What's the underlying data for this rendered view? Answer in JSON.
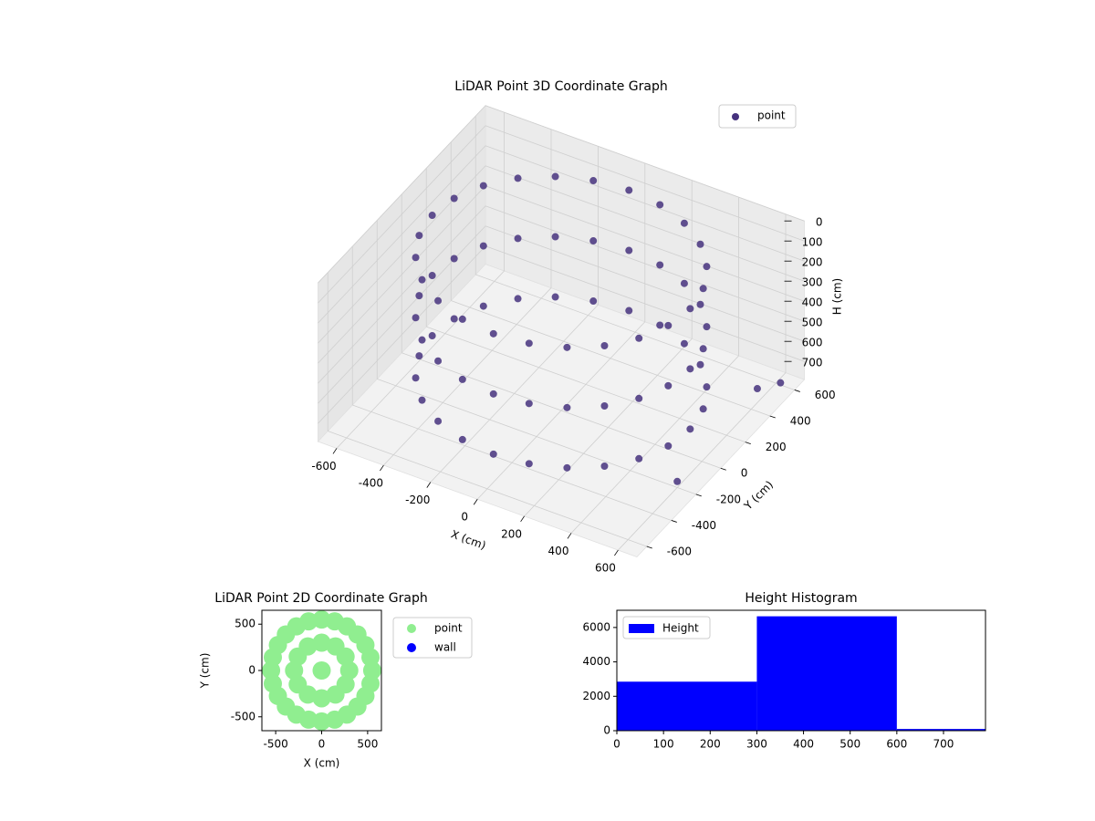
{
  "chart_data": [
    {
      "type": "scatter3d",
      "title": "LiDAR Point 3D Coordinate Graph",
      "xlabel": "X (cm)",
      "ylabel": "Y (cm)",
      "zlabel": "H (cm)",
      "xlim": [
        -680,
        680
      ],
      "ylim": [
        -680,
        680
      ],
      "zlim": [
        0,
        790
      ],
      "z_inverted": true,
      "xticks": [
        -600,
        -400,
        -200,
        0,
        200,
        400,
        600
      ],
      "yticks": [
        -600,
        -400,
        -200,
        0,
        200,
        400,
        600
      ],
      "zticks": [
        0,
        100,
        200,
        300,
        400,
        500,
        600,
        700
      ],
      "legend": "upper right",
      "grid": true,
      "series": [
        {
          "name": "point",
          "color": "#46327e",
          "x": [
            550,
            531,
            476,
            389,
            275,
            142,
            0,
            -142,
            -275,
            -389,
            -476,
            -531,
            -550,
            -531,
            -476,
            -389,
            -275,
            -142,
            0,
            142,
            275,
            389,
            476,
            531,
            550,
            531,
            476,
            389,
            275,
            142,
            0,
            -142,
            -275,
            -389,
            -476,
            -531,
            -550,
            -531,
            -476,
            -389,
            -275,
            -142,
            0,
            142,
            275,
            389,
            476,
            531,
            550,
            531,
            476,
            389,
            275,
            142,
            0,
            -142,
            -275,
            -389,
            -476,
            -531,
            -550,
            -531,
            -476,
            -389,
            -275,
            -142,
            0,
            142,
            275,
            389,
            476,
            531,
            600,
            620,
            600
          ],
          "y": [
            0,
            142,
            275,
            389,
            476,
            531,
            550,
            531,
            476,
            389,
            275,
            142,
            0,
            -142,
            -275,
            -389,
            -476,
            -531,
            -550,
            -531,
            -476,
            -389,
            -275,
            -142,
            0,
            142,
            275,
            389,
            476,
            531,
            550,
            531,
            476,
            389,
            275,
            142,
            0,
            -142,
            -275,
            -389,
            -476,
            -531,
            -550,
            -531,
            -476,
            -389,
            -275,
            -142,
            0,
            142,
            275,
            389,
            476,
            531,
            550,
            531,
            476,
            389,
            275,
            142,
            0,
            -142,
            -275,
            -389,
            -476,
            -531,
            -550,
            -531,
            -476,
            -389,
            -275,
            -142,
            450,
            600,
            -200
          ],
          "z": [
            50,
            50,
            50,
            50,
            50,
            50,
            50,
            50,
            50,
            50,
            50,
            50,
            50,
            50,
            50,
            50,
            50,
            50,
            50,
            50,
            50,
            50,
            50,
            50,
            350,
            350,
            350,
            350,
            350,
            350,
            350,
            350,
            350,
            350,
            350,
            350,
            350,
            350,
            350,
            350,
            350,
            350,
            350,
            350,
            350,
            350,
            350,
            350,
            650,
            650,
            650,
            650,
            650,
            650,
            650,
            650,
            650,
            650,
            650,
            650,
            650,
            650,
            650,
            650,
            650,
            650,
            650,
            650,
            650,
            650,
            650,
            650,
            720,
            780,
            760
          ]
        }
      ]
    },
    {
      "type": "scatter",
      "title": "LiDAR Point 2D Coordinate Graph",
      "xlabel": "X (cm)",
      "ylabel": "Y (cm)",
      "xlim": [
        -650,
        650
      ],
      "ylim": [
        -650,
        650
      ],
      "xticks": [
        -500,
        0,
        500
      ],
      "yticks": [
        -500,
        0,
        500
      ],
      "legend": "outside right",
      "series": [
        {
          "name": "point",
          "color": "#90ee90",
          "x": [
            550,
            531,
            476,
            389,
            275,
            142,
            0,
            -142,
            -275,
            -389,
            -476,
            -531,
            -550,
            -531,
            -476,
            -389,
            -275,
            -142,
            0,
            142,
            275,
            389,
            476,
            531,
            300,
            260,
            150,
            0,
            -150,
            -260,
            -300,
            -260,
            -150,
            0,
            150,
            260,
            0
          ],
          "y": [
            0,
            142,
            275,
            389,
            476,
            531,
            550,
            531,
            476,
            389,
            275,
            142,
            0,
            -142,
            -275,
            -389,
            -476,
            -531,
            -550,
            -531,
            -476,
            -389,
            -275,
            -142,
            0,
            150,
            260,
            300,
            260,
            150,
            0,
            -150,
            -260,
            -300,
            -260,
            -150,
            0
          ]
        },
        {
          "name": "wall",
          "color": "#0000ff",
          "x": [],
          "y": []
        }
      ]
    },
    {
      "type": "histogram",
      "title": "Height Histogram",
      "legend": "upper left",
      "bins": [
        0,
        300,
        600,
        900
      ],
      "series": [
        {
          "name": "Height",
          "color": "#0000ff",
          "values": [
            2850,
            6650,
            100
          ]
        }
      ],
      "xlim": [
        0,
        790
      ],
      "ylim": [
        0,
        7000
      ],
      "xticks": [
        0,
        100,
        200,
        300,
        400,
        500,
        600,
        700
      ],
      "yticks": [
        0,
        2000,
        4000,
        6000
      ]
    }
  ]
}
